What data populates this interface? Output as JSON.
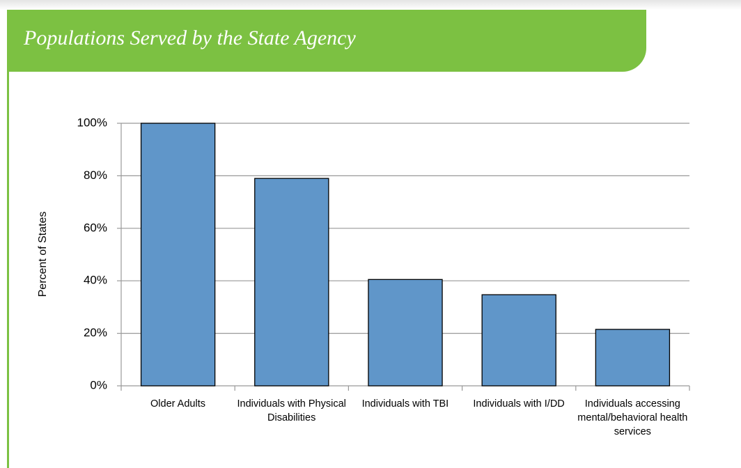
{
  "chart_data": {
    "type": "bar",
    "title": "Populations Served by the State Agency",
    "y_label": "Percent of States",
    "categories": [
      "Older Adults",
      "Individuals with Physical Disabilities",
      "Individuals with TBI",
      "Individuals with I/DD",
      "Individuals accessing mental/behavioral health services"
    ],
    "values": [
      100,
      79,
      40.5,
      34.7,
      21.5
    ],
    "color": "#6096c9",
    "ylim": [
      0,
      100
    ],
    "yticks": [
      {
        "value": 0,
        "label": "0%"
      },
      {
        "value": 20,
        "label": "20%"
      },
      {
        "value": 40,
        "label": "40%"
      },
      {
        "value": 60,
        "label": "60%"
      },
      {
        "value": 80,
        "label": "80%"
      },
      {
        "value": 100,
        "label": "100%"
      }
    ],
    "grid": true
  }
}
